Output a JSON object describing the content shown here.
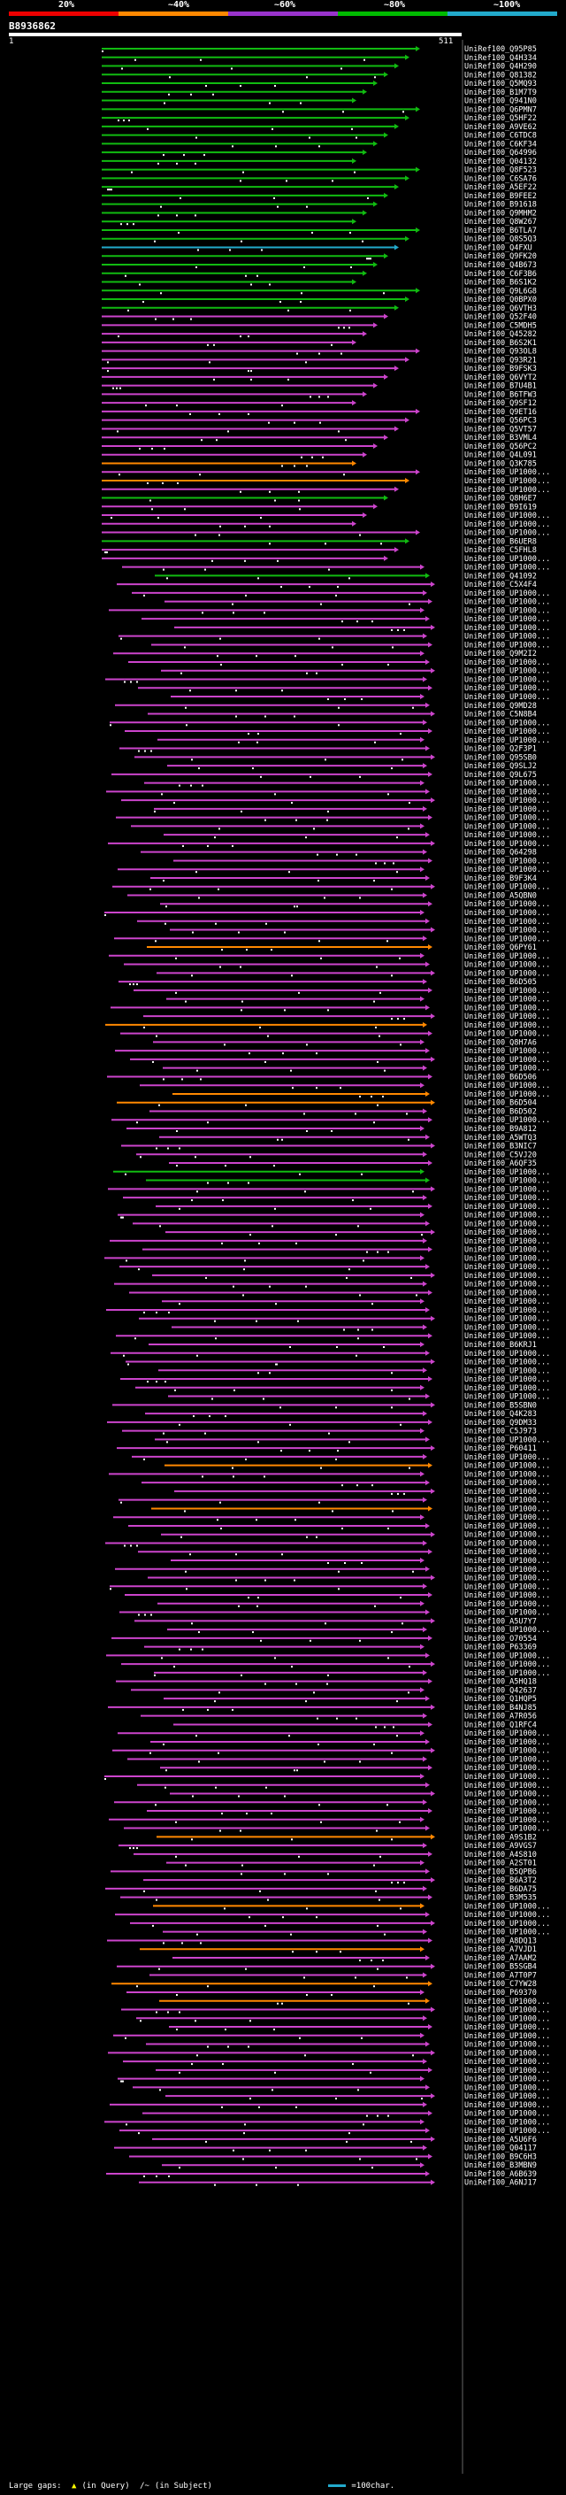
{
  "legend": {
    "labels": [
      "20%",
      "~40%",
      "~60%",
      "~80%",
      "~100%"
    ],
    "colors": [
      "#e00",
      "#f80",
      "#93c",
      "#0b0",
      "#2ac"
    ]
  },
  "query": {
    "id": "B8936862",
    "start_label": "1",
    "end_label": "511"
  },
  "hits": [
    "UniRef100_Q95P85",
    "UniRef100_Q4H334",
    "UniRef100_Q4H290",
    "UniRef100_Q81382",
    "UniRef100_Q5MQ93",
    "UniRef100_B1M7T9",
    "UniRef100_Q941N0",
    "UniRef100_Q6PMN7",
    "UniRef100_Q5HF22",
    "UniRef100_A9VE62",
    "UniRef100_C6TDC8",
    "UniRef100_C6KF34",
    "UniRef100_Q64996",
    "UniRef100_Q04132",
    "UniRef100_Q8F523",
    "UniRef100_C6SA76",
    "UniRef100_A5EF22",
    "UniRef100_B9FEE2",
    "UniRef100_B91618",
    "UniRef100_Q9MHM2",
    "UniRef100_Q8W267",
    "UniRef100_B6TLA7",
    "UniRef100_Q8S5Q3",
    "UniRef100_Q4FXU",
    "UniRef100_Q9FK20",
    "UniRef100_Q4B673",
    "UniRef100_C6F3B6",
    "UniRef100_B6S1K2",
    "UniRef100_Q9L6G8",
    "UniRef100_Q0BPX0",
    "UniRef100_Q6VTH3",
    "UniRef100_Q52F40",
    "UniRef100_C5MDH5",
    "UniRef100_Q45282",
    "UniRef100_B6S2K1",
    "UniRef100_Q93OL8",
    "UniRef100_Q93R21",
    "UniRef100_B9FSK3",
    "UniRef100_Q6VYT2",
    "UniRef100_B7U4B1",
    "UniRef100_B6TFW3",
    "UniRef100_Q9SF12",
    "UniRef100_Q9ET16",
    "UniRef100_Q56PC3",
    "UniRef100_Q5VT57",
    "UniRef100_B3VML4",
    "UniRef100_Q56PC2",
    "UniRef100_Q4L091",
    "UniRef100_Q3K785",
    "UniRef100_UP1000...",
    "UniRef100_UP1000...",
    "UniRef100_UP1000...",
    "UniRef100_Q8H6E7",
    "UniRef100_B9I619",
    "UniRef100_UP1000...",
    "UniRef100_UP1000...",
    "UniRef100_UP1000...",
    "UniRef100_B6UER8",
    "UniRef100_C5FHL8",
    "UniRef100_UP1000...",
    "UniRef100_UP1000...",
    "UniRef100_Q41092",
    "UniRef100_C5X4F4",
    "UniRef100_UP1000...",
    "UniRef100_UP1000...",
    "UniRef100_UP1000...",
    "UniRef100_UP1000...",
    "UniRef100_UP1000...",
    "UniRef100_UP1000...",
    "UniRef100_UP1000...",
    "UniRef100_Q9M2I2",
    "UniRef100_UP1000...",
    "UniRef100_UP1000...",
    "UniRef100_UP1000...",
    "UniRef100_UP1000...",
    "UniRef100_UP1000...",
    "UniRef100_Q9MD28",
    "UniRef100_C5N8B4",
    "UniRef100_UP1000...",
    "UniRef100_UP1000...",
    "UniRef100_UP1000...",
    "UniRef100_Q2F3P1",
    "UniRef100_Q95SB0",
    "UniRef100_Q9SLJ2",
    "UniRef100_Q9L675",
    "UniRef100_UP1000...",
    "UniRef100_UP1000...",
    "UniRef100_UP1000...",
    "UniRef100_UP1000...",
    "UniRef100_UP1000...",
    "UniRef100_UP1000...",
    "UniRef100_UP1000...",
    "UniRef100_UP1000...",
    "UniRef100_Q64298",
    "UniRef100_UP1000...",
    "UniRef100_UP1000...",
    "UniRef100_B9F3K4",
    "UniRef100_UP1000...",
    "UniRef100_A5QBN0",
    "UniRef100_UP1000...",
    "UniRef100_UP1000...",
    "UniRef100_UP1000...",
    "UniRef100_UP1000...",
    "UniRef100_UP1000...",
    "UniRef100_Q6PY61",
    "UniRef100_UP1000...",
    "UniRef100_UP1000...",
    "UniRef100_UP1000...",
    "UniRef100_B6D505",
    "UniRef100_UP1000...",
    "UniRef100_UP1000...",
    "UniRef100_UP1000...",
    "UniRef100_UP1000...",
    "UniRef100_UP1000...",
    "UniRef100_UP1000...",
    "UniRef100_Q8H7A6",
    "UniRef100_UP1000...",
    "UniRef100_UP1000...",
    "UniRef100_UP1000...",
    "UniRef100_B6D506",
    "UniRef100_UP1000...",
    "UniRef100_UP1000...",
    "UniRef100_B6D504",
    "UniRef100_B6D502",
    "UniRef100_UP1000...",
    "UniRef100_B9A812",
    "UniRef100_A5WTQ3",
    "UniRef100_B3NIC7",
    "UniRef100_C5VJ20",
    "UniRef100_A6QF35",
    "UniRef100_UP1000...",
    "UniRef100_UP1000...",
    "UniRef100_UP1000...",
    "UniRef100_UP1000...",
    "UniRef100_UP1000...",
    "UniRef100_UP1000...",
    "UniRef100_UP1000...",
    "UniRef100_UP1000...",
    "UniRef100_UP1000...",
    "UniRef100_UP1000...",
    "UniRef100_UP1000...",
    "UniRef100_UP1000...",
    "UniRef100_UP1000...",
    "UniRef100_UP1000...",
    "UniRef100_UP1000...",
    "UniRef100_UP1000...",
    "UniRef100_UP1000...",
    "UniRef100_UP1000...",
    "UniRef100_UP1000...",
    "UniRef100_UP1000...",
    "UniRef100_B6KRJ1",
    "UniRef100_UP1000...",
    "UniRef100_UP1000...",
    "UniRef100_UP1000...",
    "UniRef100_UP1000...",
    "UniRef100_UP1000...",
    "UniRef100_UP1000...",
    "UniRef100_B5SBN0",
    "UniRef100_Q4K283",
    "UniRef100_Q9DM33",
    "UniRef100_C5J973",
    "UniRef100_UP1000...",
    "UniRef100_P60411",
    "UniRef100_UP1000...",
    "UniRef100_UP1000...",
    "UniRef100_UP1000...",
    "UniRef100_UP1000...",
    "UniRef100_UP1000...",
    "UniRef100_UP1000...",
    "UniRef100_UP1000...",
    "UniRef100_UP1000...",
    "UniRef100_UP1000...",
    "UniRef100_UP1000...",
    "UniRef100_UP1000...",
    "UniRef100_UP1000...",
    "UniRef100_UP1000...",
    "UniRef100_UP1000...",
    "UniRef100_UP1000...",
    "UniRef100_UP1000...",
    "UniRef100_UP1000...",
    "UniRef100_UP1000...",
    "UniRef100_UP1000...",
    "UniRef100_A5U7Y7",
    "UniRef100_UP1000...",
    "UniRef100_O70554",
    "UniRef100_P63369",
    "UniRef100_UP1000...",
    "UniRef100_UP1000...",
    "UniRef100_UP1000...",
    "UniRef100_A5HQ18",
    "UniRef100_Q42637",
    "UniRef100_Q1HQP5",
    "UniRef100_B4NJ85",
    "UniRef100_A7R056",
    "UniRef100_Q1RFC4",
    "UniRef100_UP1000...",
    "UniRef100_UP1000...",
    "UniRef100_UP1000...",
    "UniRef100_UP1000...",
    "UniRef100_UP1000...",
    "UniRef100_UP1000...",
    "UniRef100_UP1000...",
    "UniRef100_UP1000...",
    "UniRef100_UP1000...",
    "UniRef100_UP1000...",
    "UniRef100_UP1000...",
    "UniRef100_UP1000...",
    "UniRef100_A9S1B2",
    "UniRef100_A9VGS7",
    "UniRef100_A4S810",
    "UniRef100_A2ST01",
    "UniRef100_B5QPB6",
    "UniRef100_B6A3T2",
    "UniRef100_B6DA75",
    "UniRef100_B3M535",
    "UniRef100_UP1000...",
    "UniRef100_UP1000...",
    "UniRef100_UP1000...",
    "UniRef100_UP1000...",
    "UniRef100_A8DQ13",
    "UniRef100_A7VJD1",
    "UniRef100_A7AAM2",
    "UniRef100_B5SGB4",
    "UniRef100_A7T0P7",
    "UniRef100_C7YW28",
    "UniRef100_P69370",
    "UniRef100_UP1000...",
    "UniRef100_UP1000...",
    "UniRef100_UP1000...",
    "UniRef100_UP1000...",
    "UniRef100_UP1000...",
    "UniRef100_UP1000...",
    "UniRef100_UP1000...",
    "UniRef100_UP1000...",
    "UniRef100_UP1000...",
    "UniRef100_UP1000...",
    "UniRef100_UP1000...",
    "UniRef100_UP1000...",
    "UniRef100_UP1000...",
    "UniRef100_UP1000...",
    "UniRef100_UP1000...",
    "UniRef100_UP1000...",
    "UniRef100_A5U6F6",
    "UniRef100_Q04117",
    "UniRef100_B9C6H3",
    "UniRef100_B3MBN9",
    "UniRef100_A6B639",
    "UniRef100_A6NJ17"
  ],
  "footer": {
    "large_gaps_label": "Large gaps:",
    "in_query": "(in Query)",
    "in_subject": "(in Subject)",
    "scale_label": "=100char."
  }
}
